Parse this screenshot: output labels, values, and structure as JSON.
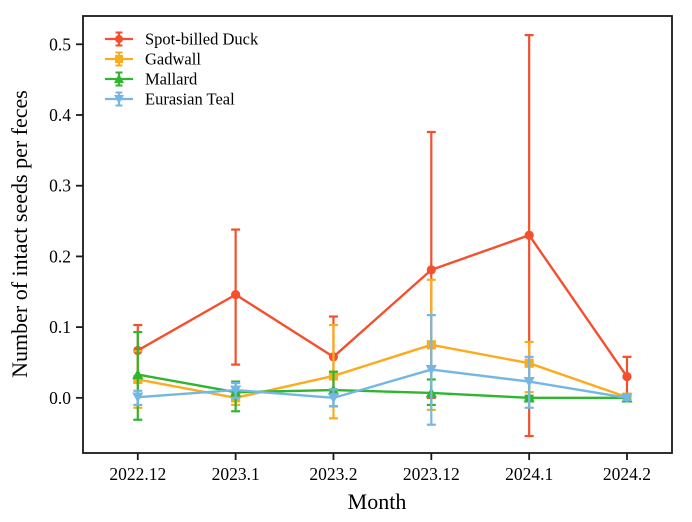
{
  "figure": {
    "background": "#ffffff",
    "axis_color": "#1a1a1a"
  },
  "chart_data": {
    "type": "line",
    "title": "",
    "xlabel": "Month",
    "ylabel": "Number of intact seeds per feces",
    "categories": [
      "2022.12",
      "2023.1",
      "2023.2",
      "2023.12",
      "2024.1",
      "2024.2"
    ],
    "yticks": [
      0.0,
      0.1,
      0.2,
      0.3,
      0.4,
      0.5
    ],
    "ylim": [
      -0.078,
      0.54
    ],
    "xlim_index": [
      -0.56,
      5.46
    ],
    "grid": false,
    "error_bars": true,
    "legend_position": "upper-left",
    "series": [
      {
        "name": "Spot-billed Duck",
        "color": "#f4502e",
        "marker": "circle",
        "values": [
          0.067,
          0.146,
          0.058,
          0.181,
          0.23,
          0.03
        ],
        "err_low": [
          0.03,
          0.047,
          0.012,
          0.0,
          -0.054,
          0.0
        ],
        "err_high": [
          0.103,
          0.238,
          0.115,
          0.376,
          0.513,
          0.058
        ]
      },
      {
        "name": "Gadwall",
        "color": "#fbab1d",
        "marker": "square",
        "values": [
          0.026,
          0.0,
          0.031,
          0.075,
          0.049,
          0.001
        ],
        "err_low": [
          -0.014,
          -0.01,
          -0.029,
          -0.017,
          0.008,
          -0.003
        ],
        "err_high": [
          0.066,
          0.006,
          0.103,
          0.167,
          0.079,
          0.005
        ]
      },
      {
        "name": "Mallard",
        "color": "#2eb62e",
        "marker": "triangle-up",
        "values": [
          0.033,
          0.008,
          0.011,
          0.007,
          0.0,
          0.0
        ],
        "err_low": [
          -0.031,
          -0.019,
          -0.012,
          -0.01,
          -0.003,
          -0.003
        ],
        "err_high": [
          0.093,
          0.023,
          0.037,
          0.026,
          0.003,
          0.003
        ]
      },
      {
        "name": "Eurasian Teal",
        "color": "#74b7e4",
        "marker": "triangle-down",
        "values": [
          0.001,
          0.011,
          0.0,
          0.04,
          0.023,
          0.0
        ],
        "err_low": [
          -0.01,
          0.0,
          -0.012,
          -0.038,
          -0.014,
          -0.003
        ],
        "err_high": [
          0.01,
          0.021,
          0.012,
          0.117,
          0.058,
          0.003
        ]
      }
    ]
  }
}
